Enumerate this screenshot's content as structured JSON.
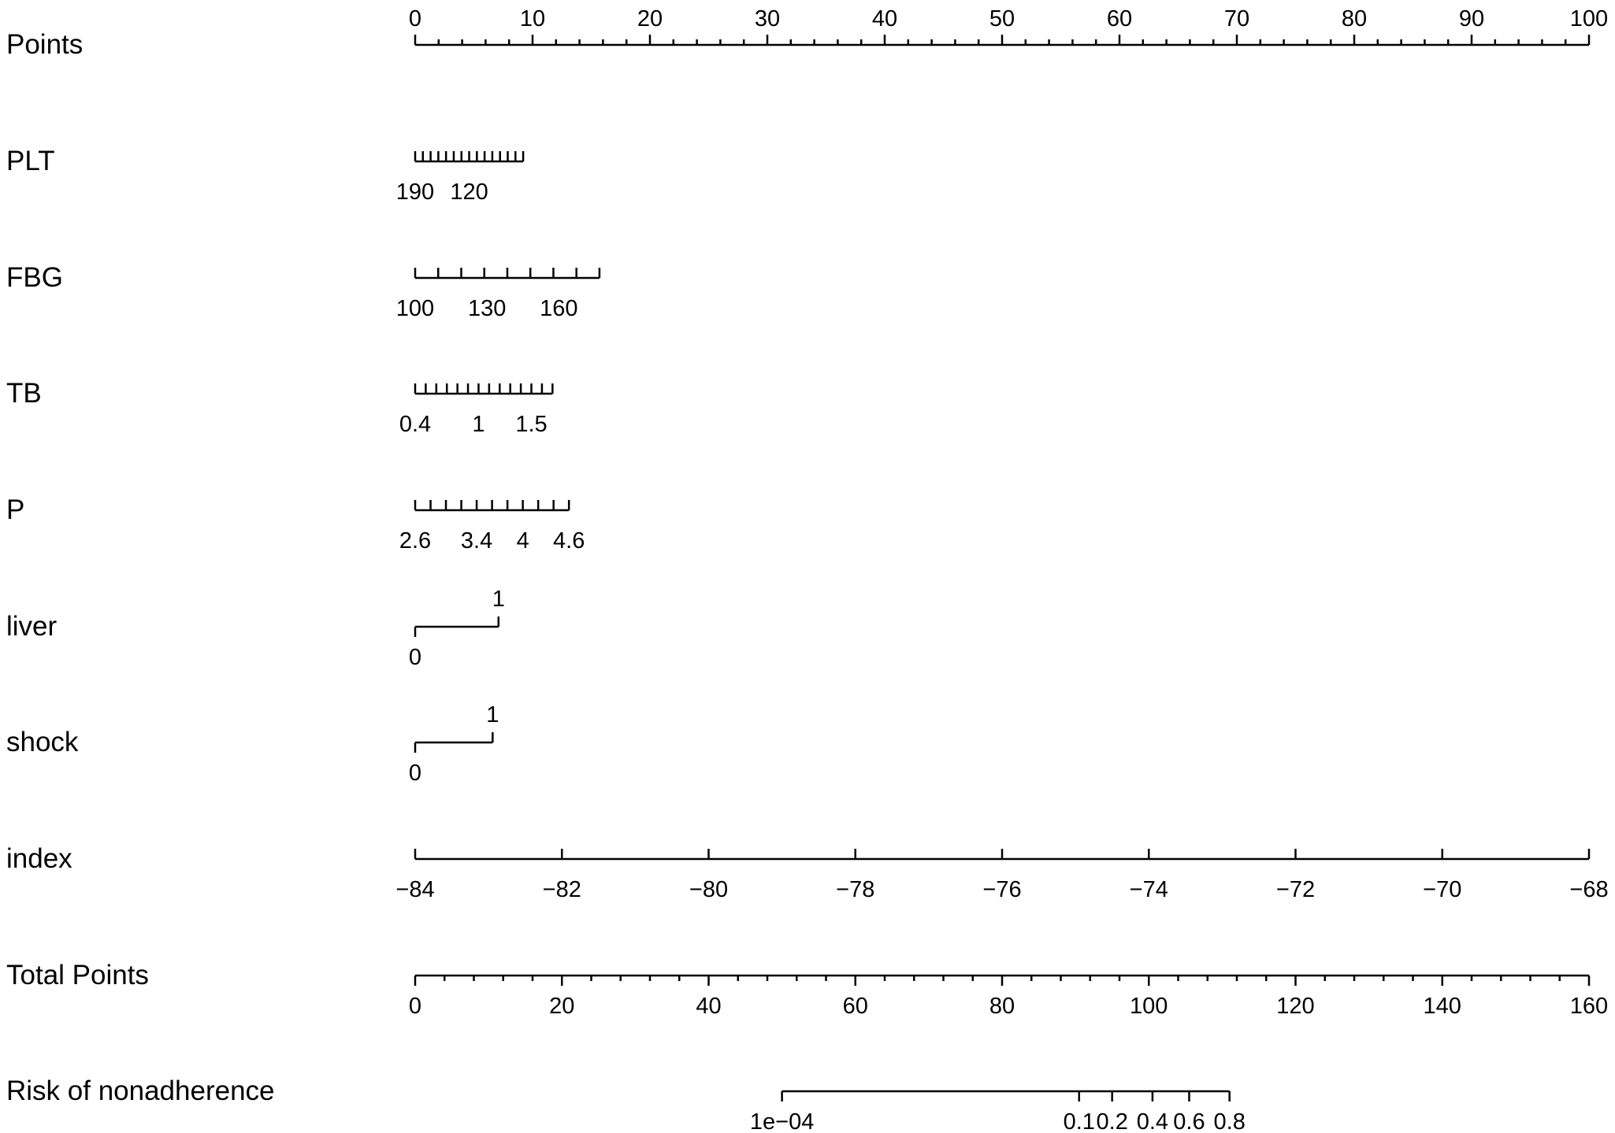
{
  "chart_data": {
    "type": "nomogram",
    "title": "",
    "rows": [
      {
        "key": "points",
        "label": "Points",
        "scale": {
          "type": "linear",
          "min": 0,
          "max": 100,
          "major_step": 10,
          "minor_step": 2
        },
        "tick_labels": [
          "0",
          "10",
          "20",
          "30",
          "40",
          "50",
          "60",
          "70",
          "80",
          "90",
          "100"
        ],
        "label_position": "above",
        "point_range": [
          0,
          100
        ]
      },
      {
        "key": "plt",
        "label": "PLT",
        "value_range": [
          190,
          50
        ],
        "tick_count": 15,
        "tick_labels": [
          {
            "text": "190",
            "value": 190
          },
          {
            "text": "120",
            "value": 120
          }
        ],
        "label_position": "below",
        "point_range": [
          0,
          9.2
        ]
      },
      {
        "key": "fbg",
        "label": "FBG",
        "value_range": [
          100,
          177
        ],
        "tick_count": 9,
        "tick_labels": [
          {
            "text": "100",
            "value": 100
          },
          {
            "text": "130",
            "value": 130
          },
          {
            "text": "160",
            "value": 160
          }
        ],
        "label_position": "below",
        "point_range": [
          0,
          15.7
        ]
      },
      {
        "key": "tb",
        "label": "TB",
        "value_range": [
          0.4,
          1.7
        ],
        "tick_count": 14,
        "tick_labels": [
          {
            "text": "0.4",
            "value": 0.4
          },
          {
            "text": "1",
            "value": 1
          },
          {
            "text": "1.5",
            "value": 1.5
          }
        ],
        "label_position": "below",
        "point_range": [
          0,
          11.7
        ]
      },
      {
        "key": "p",
        "label": "P",
        "value_range": [
          2.6,
          4.6
        ],
        "tick_count": 11,
        "tick_labels": [
          {
            "text": "2.6",
            "value": 2.6
          },
          {
            "text": "3.4",
            "value": 3.4
          },
          {
            "text": "4",
            "value": 4
          },
          {
            "text": "4.6",
            "value": 4.6
          }
        ],
        "label_position": "below",
        "point_range": [
          0,
          13.1
        ]
      },
      {
        "key": "liver",
        "label": "liver",
        "categorical": true,
        "levels": [
          {
            "text": "0",
            "points": 0,
            "label_position": "below"
          },
          {
            "text": "1",
            "points": 7.1,
            "label_position": "above"
          }
        ]
      },
      {
        "key": "shock",
        "label": "shock",
        "categorical": true,
        "levels": [
          {
            "text": "0",
            "points": 0,
            "label_position": "below"
          },
          {
            "text": "1",
            "points": 6.6,
            "label_position": "above"
          }
        ]
      },
      {
        "key": "index",
        "label": "index",
        "value_range": [
          -84,
          -68
        ],
        "tick_count": 9,
        "tick_labels": [
          {
            "text": "−84",
            "value": -84
          },
          {
            "text": "−82",
            "value": -82
          },
          {
            "text": "−80",
            "value": -80
          },
          {
            "text": "−78",
            "value": -78
          },
          {
            "text": "−76",
            "value": -76
          },
          {
            "text": "−74",
            "value": -74
          },
          {
            "text": "−72",
            "value": -72
          },
          {
            "text": "−70",
            "value": -70
          },
          {
            "text": "−68",
            "value": -68
          }
        ],
        "label_position": "below",
        "point_range": [
          0,
          100
        ]
      },
      {
        "key": "total",
        "label": "Total Points",
        "scale": {
          "type": "linear",
          "min": 0,
          "max": 160,
          "major_step": 20,
          "minor_step": 4
        },
        "tick_labels": [
          "0",
          "20",
          "40",
          "60",
          "80",
          "100",
          "120",
          "140",
          "160"
        ],
        "label_position": "below",
        "total_points_range": [
          0,
          160
        ]
      },
      {
        "key": "risk",
        "label": "Risk of nonadherence",
        "tick_labels": [
          {
            "text": "1e−04",
            "value": 0.0001,
            "total_points": 50
          },
          {
            "text": "0.1",
            "value": 0.1,
            "total_points": 90.5
          },
          {
            "text": "0.2",
            "value": 0.2,
            "total_points": 95
          },
          {
            "text": "0.4",
            "value": 0.4,
            "total_points": 100.5
          },
          {
            "text": "0.6",
            "value": 0.6,
            "total_points": 105.5
          },
          {
            "text": "0.8",
            "value": 0.8,
            "total_points": 111
          }
        ],
        "label_position": "below"
      }
    ]
  }
}
